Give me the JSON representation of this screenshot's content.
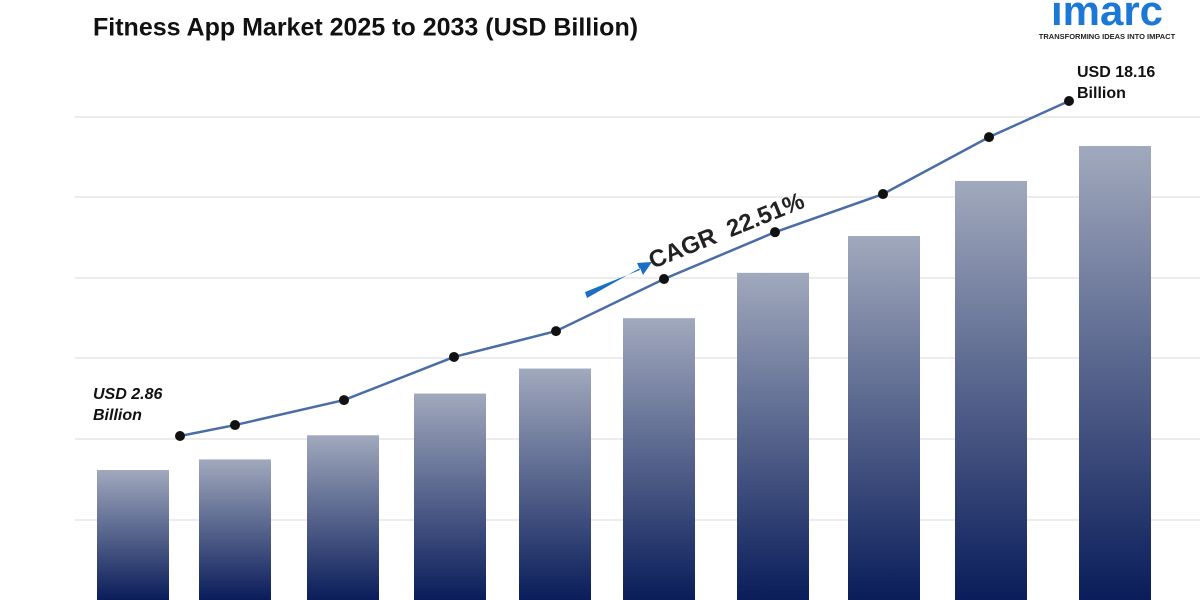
{
  "logo": {
    "name": "imarc",
    "tagline": "TRANSFORMING IDEAS INTO IMPACT"
  },
  "chart_data": {
    "type": "bar_line",
    "title": "Fitness App Market 2025 to 2033 (USD Billion)",
    "values": [
      2.86,
      3.36,
      4.5,
      6.47,
      7.65,
      10.03,
      12.17,
      13.91,
      16.51,
      18.16
    ],
    "value_labels": [
      "USD 2.86 Billion",
      null,
      null,
      null,
      null,
      null,
      null,
      null,
      null,
      "USD 18.16 Billion"
    ],
    "annotation": "CAGR  22.51%",
    "bar_colors": [
      "#a1a9bd",
      "#0a1d5a"
    ],
    "line_color": "#4a6da6",
    "marker_color": "#111111",
    "arrow_color": "#1a6fc4",
    "logo_color": "#1b78d4"
  }
}
